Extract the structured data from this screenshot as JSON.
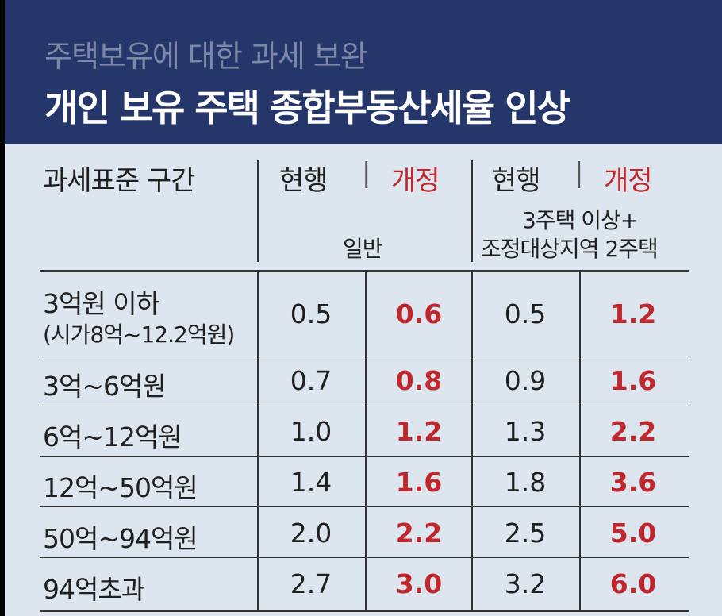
{
  "header": {
    "subtitle": "주택보유에 대한 과세 보완",
    "title": "개인 보유 주택 종합부동산세율 인상"
  },
  "columns": {
    "bracket": "과세표준 구간",
    "current": "현행",
    "revised": "개정",
    "sep": "|",
    "group_general": "일반",
    "group_multi_line1": "3주택 이상+",
    "group_multi_line2": "조정대상지역 2주택"
  },
  "rows": [
    {
      "bracket": "3억원 이하",
      "bracket_sub": "(시가8억~12.2억원)",
      "gen_current": "0.5",
      "gen_revised": "0.6",
      "multi_current": "0.5",
      "multi_revised": "1.2"
    },
    {
      "bracket": "3억~6억원",
      "gen_current": "0.7",
      "gen_revised": "0.8",
      "multi_current": "0.9",
      "multi_revised": "1.6"
    },
    {
      "bracket": "6억~12억원",
      "gen_current": "1.0",
      "gen_revised": "1.2",
      "multi_current": "1.3",
      "multi_revised": "2.2"
    },
    {
      "bracket": "12억~50억원",
      "gen_current": "1.4",
      "gen_revised": "1.6",
      "multi_current": "1.8",
      "multi_revised": "3.6"
    },
    {
      "bracket": "50억~94억원",
      "gen_current": "2.0",
      "gen_revised": "2.2",
      "multi_current": "2.5",
      "multi_revised": "5.0"
    },
    {
      "bracket": "94억초과",
      "gen_current": "2.7",
      "gen_revised": "3.0",
      "multi_current": "3.2",
      "multi_revised": "6.0"
    }
  ],
  "colors": {
    "header_bg": "#25366a",
    "body_bg": "#dde6ee",
    "revised": "#c0272d"
  }
}
